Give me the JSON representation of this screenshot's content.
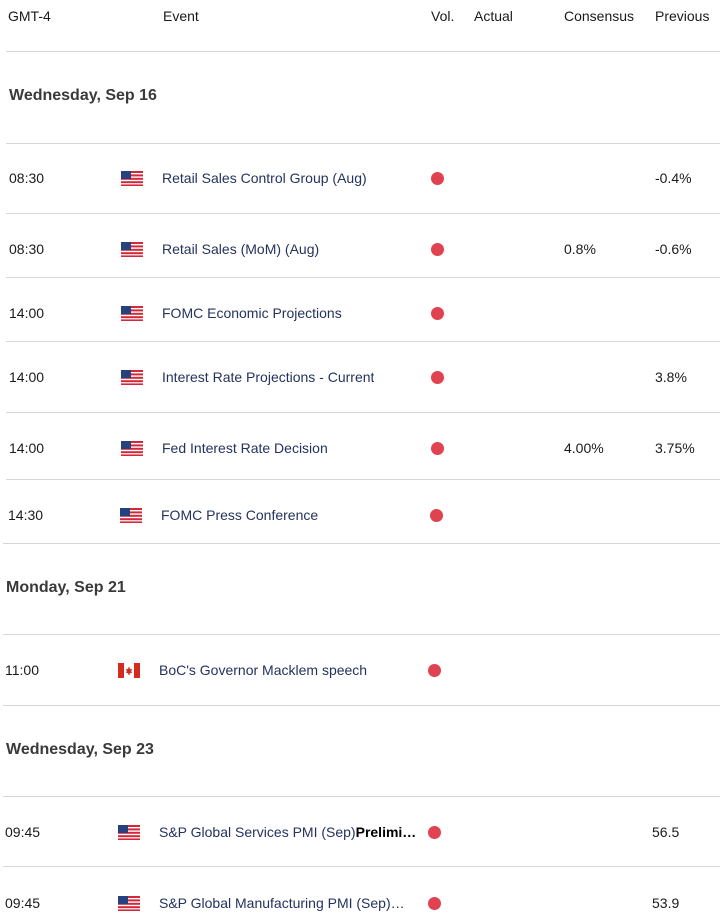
{
  "header": {
    "timezone": "GMT-4",
    "event": "Event",
    "vol": "Vol.",
    "actual": "Actual",
    "consensus": "Consensus",
    "previous": "Previous"
  },
  "dates": [
    "Wednesday, Sep 16",
    "Monday, Sep 21",
    "Wednesday, Sep 23"
  ],
  "rows": [
    {
      "time": "08:30",
      "country": "US",
      "event": "Retail Sales Control Group (Aug)",
      "actual": "",
      "consensus": "",
      "previous": "-0.4%"
    },
    {
      "time": "08:30",
      "country": "US",
      "event": "Retail Sales (MoM) (Aug)",
      "actual": "",
      "consensus": "0.8%",
      "previous": "-0.6%"
    },
    {
      "time": "14:00",
      "country": "US",
      "event": "FOMC Economic Projections",
      "actual": "",
      "consensus": "",
      "previous": ""
    },
    {
      "time": "14:00",
      "country": "US",
      "event": "Interest Rate Projections - Current",
      "actual": "",
      "consensus": "",
      "previous": "3.8%"
    },
    {
      "time": "14:00",
      "country": "US",
      "event": "Fed Interest Rate Decision",
      "actual": "",
      "consensus": "4.00%",
      "previous": "3.75%"
    },
    {
      "time": "14:30",
      "country": "US",
      "event": "FOMC Press Conference",
      "actual": "",
      "consensus": "",
      "previous": ""
    },
    {
      "time": "11:00",
      "country": "CA",
      "event": "BoC's Governor Macklem speech",
      "actual": "",
      "consensus": "",
      "previous": ""
    },
    {
      "time": "09:45",
      "country": "US",
      "event": "S&P Global Services PMI (Sep)",
      "event_suffix": "Prelimi…",
      "actual": "",
      "consensus": "",
      "previous": "56.5"
    },
    {
      "time": "09:45",
      "country": "US",
      "event": "S&P Global Manufacturing PMI (Sep)…",
      "actual": "",
      "consensus": "",
      "previous": "53.9"
    }
  ],
  "volatility_color": "#e0424f"
}
